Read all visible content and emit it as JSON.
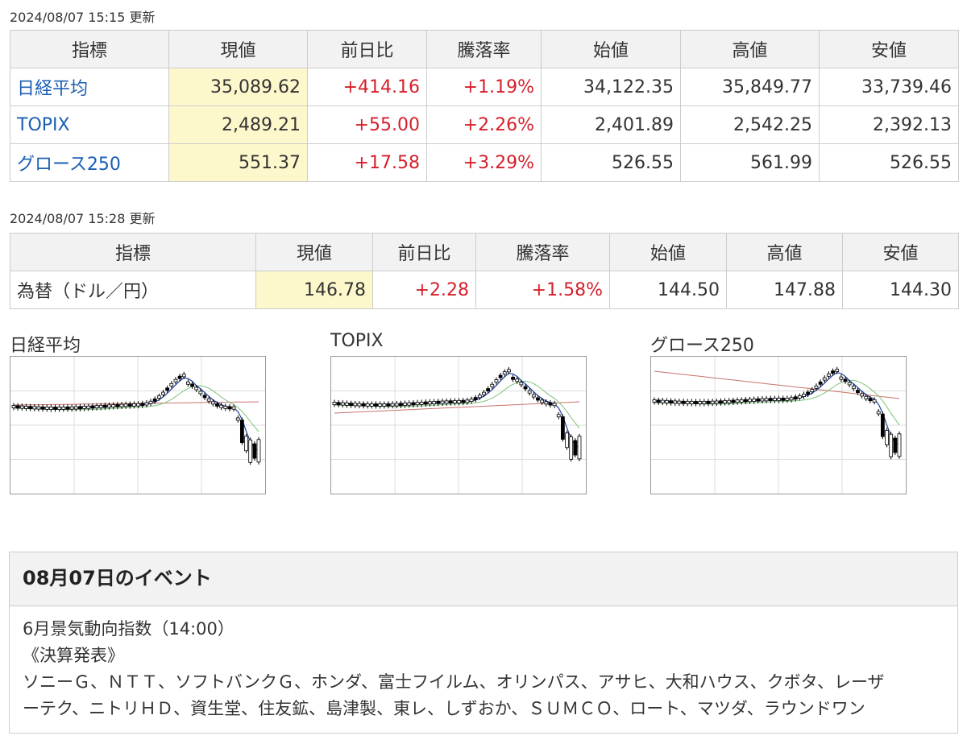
{
  "market_table": {
    "updated": "2024/08/07 15:15 更新",
    "headers": [
      "指標",
      "現値",
      "前日比",
      "騰落率",
      "始値",
      "高値",
      "安値"
    ],
    "rows": [
      {
        "name": "日経平均",
        "current": "35,089.62",
        "change": "+414.16",
        "rate": "+1.19%",
        "open": "34,122.35",
        "high": "35,849.77",
        "low": "33,739.46"
      },
      {
        "name": "TOPIX",
        "current": "2,489.21",
        "change": "+55.00",
        "rate": "+2.26%",
        "open": "2,401.89",
        "high": "2,542.25",
        "low": "2,392.13"
      },
      {
        "name": "グロース250",
        "current": "551.37",
        "change": "+17.58",
        "rate": "+3.29%",
        "open": "526.55",
        "high": "561.99",
        "low": "526.55"
      }
    ]
  },
  "fx_table": {
    "updated": "2024/08/07 15:28 更新",
    "headers": [
      "指標",
      "現値",
      "前日比",
      "騰落率",
      "始値",
      "高値",
      "安値"
    ],
    "rows": [
      {
        "name": "為替（ドル／円）",
        "current": "146.78",
        "change": "+2.28",
        "rate": "+1.58%",
        "open": "144.50",
        "high": "147.88",
        "low": "144.30"
      }
    ]
  },
  "colors": {
    "up": "#d61f2b",
    "link": "#1a5fb4",
    "highlight": "#fdf8cc",
    "header_bg": "#f2f2f2",
    "ma_short": "#1f3fa0",
    "ma_mid": "#7cc47c",
    "ma_long": "#c9736b"
  },
  "charts": [
    {
      "title": "日経平均",
      "kind": "candlestick-mini"
    },
    {
      "title": "TOPIX",
      "kind": "candlestick-mini"
    },
    {
      "title": "グロース250",
      "kind": "candlestick-mini"
    }
  ],
  "events": {
    "title": "08月07日のイベント",
    "line1": "6月景気動向指数（14:00）",
    "line2": "《決算発表》",
    "line3": "ソニーＧ、ＮＴＴ、ソフトバンクＧ、ホンダ、富士フイルム、オリンパス、アサヒ、大和ハウス、クボタ、レーザ",
    "line4": "ーテク、ニトリＨＤ、資生堂、住友鉱、島津製、東レ、しずおか、ＳＵＭＣＯ、ロート、マツダ、ラウンドワン"
  }
}
